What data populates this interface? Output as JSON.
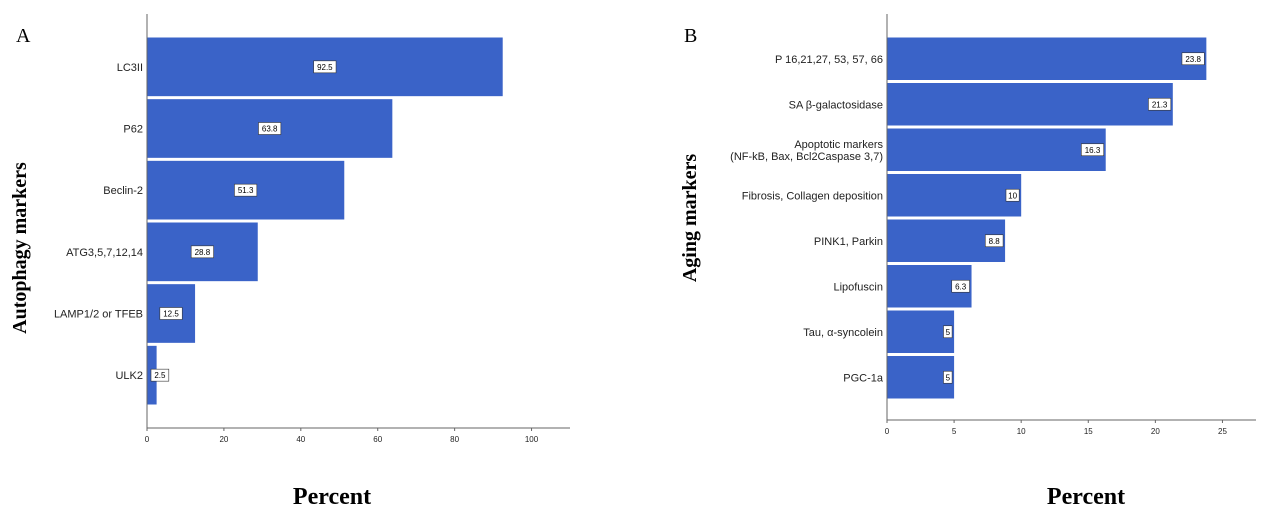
{
  "chart_data": [
    {
      "type": "bar",
      "orientation": "horizontal",
      "panel_label": "A",
      "xlabel": "Percent",
      "ylabel": "Autophagy markers",
      "categories": [
        [
          "LC3II"
        ],
        [
          "P62"
        ],
        [
          "Beclin-2"
        ],
        [
          "ATG3,5,7,12,14"
        ],
        [
          "LAMP1/2 or TFEB"
        ],
        [
          "ULK2"
        ]
      ],
      "values": [
        92.5,
        63.8,
        51.3,
        28.8,
        12.5,
        2.5
      ],
      "data_labels": [
        "92.5",
        "63.8",
        "51.3",
        "28.8",
        "12.5",
        "2.5"
      ],
      "xlim": [
        0,
        110
      ],
      "xticks": [
        0,
        20,
        40,
        60,
        80,
        100
      ],
      "bar_color": "#3a63c8",
      "grid": false
    },
    {
      "type": "bar",
      "orientation": "horizontal",
      "panel_label": "B",
      "xlabel": "Percent",
      "ylabel": "Aging markers",
      "categories": [
        [
          "P 16,21,27, 53, 57, 66"
        ],
        [
          "SA β-galactosidase"
        ],
        [
          "Apoptotic markers",
          "(NF-kB, Bax, Bcl2Caspase 3,7)"
        ],
        [
          "Fibrosis, Collagen deposition"
        ],
        [
          "PINK1, Parkin"
        ],
        [
          "Lipofuscin"
        ],
        [
          "Tau,  α-syncolein"
        ],
        [
          "PGC-1a"
        ]
      ],
      "values": [
        23.8,
        21.3,
        16.3,
        10,
        8.8,
        6.3,
        5,
        5
      ],
      "data_labels": [
        "23.8",
        "21.3",
        "16.3",
        "10",
        "8.8",
        "6.3",
        "5",
        "5"
      ],
      "xlim": [
        0,
        27.5
      ],
      "xticks": [
        0,
        5,
        10,
        15,
        20,
        25
      ],
      "bar_color": "#3a63c8",
      "grid": false
    }
  ]
}
